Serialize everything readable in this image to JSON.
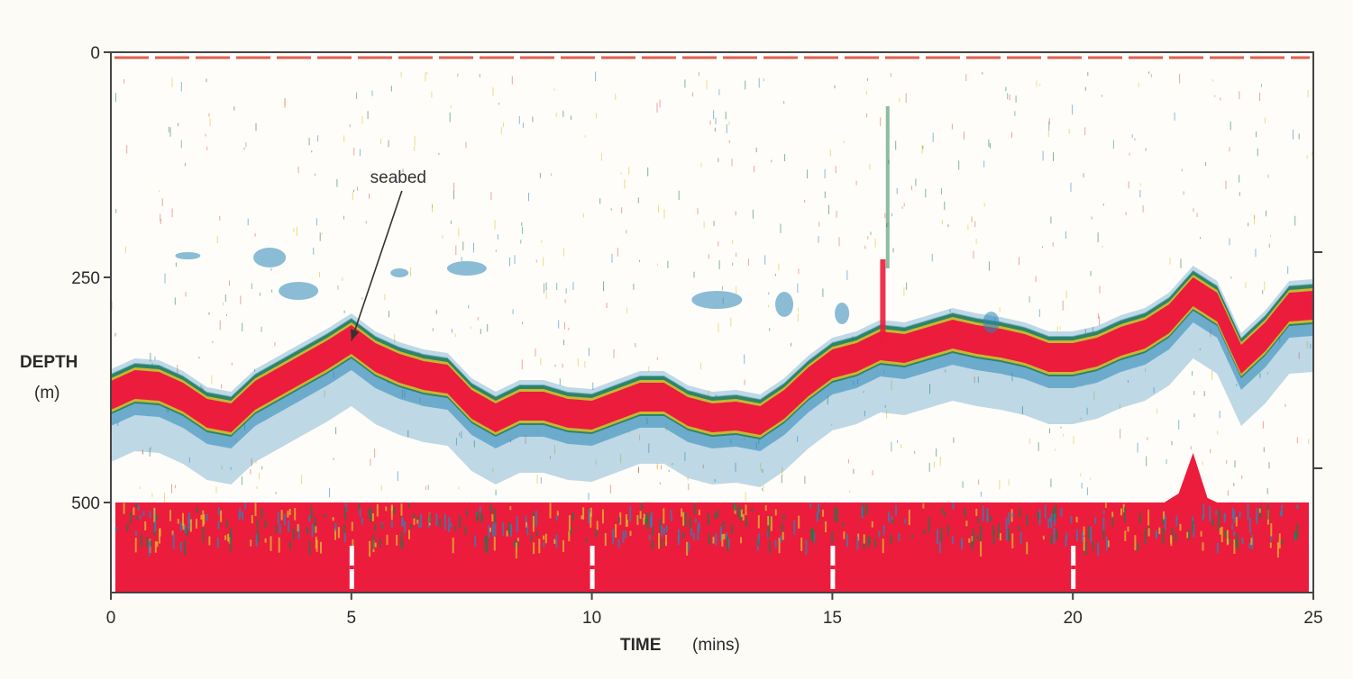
{
  "chart_data": {
    "type": "area",
    "title": "",
    "xlabel": "TIME",
    "xlabel_unit": "(mins)",
    "ylabel": "DEPTH",
    "ylabel_unit": "(m)",
    "xlim": [
      0,
      25
    ],
    "ylim": [
      0,
      600
    ],
    "y_inverted": true,
    "x_ticks": [
      "0",
      "5",
      "10",
      "15",
      "20",
      "25"
    ],
    "y_ticks": [
      "0",
      "250",
      "500"
    ],
    "grid": false,
    "colors": {
      "seabed_echo": "#ec1c3c",
      "weak_echo": "#2a86b8",
      "mid_echo": "#1e7a4a",
      "fringe_echo": "#e0c02a",
      "surface_line": "#e06050",
      "frame": "#444444"
    },
    "annotations": [
      {
        "text": "seabed",
        "x": 5.9,
        "y": 320
      }
    ],
    "series": [
      {
        "name": "seabed",
        "x": [
          0,
          0.5,
          1,
          1.5,
          2,
          2.5,
          3,
          3.5,
          4,
          4.5,
          5,
          5.5,
          6,
          6.5,
          7,
          7.5,
          8,
          8.5,
          9,
          9.5,
          10,
          10.5,
          11,
          11.5,
          12,
          12.5,
          13,
          13.5,
          14,
          14.5,
          15,
          15.5,
          16,
          16.5,
          17,
          17.5,
          18,
          18.5,
          19,
          19.5,
          20,
          20.5,
          21,
          21.5,
          22,
          22.5,
          23,
          23.5,
          24,
          24.5,
          25
        ],
        "y": [
          360,
          348,
          350,
          362,
          380,
          385,
          360,
          345,
          330,
          315,
          298,
          318,
          330,
          338,
          342,
          370,
          385,
          372,
          372,
          380,
          382,
          372,
          362,
          362,
          378,
          385,
          383,
          388,
          370,
          345,
          325,
          318,
          305,
          308,
          300,
          292,
          298,
          302,
          308,
          318,
          318,
          312,
          300,
          292,
          275,
          245,
          262,
          320,
          295,
          262,
          260
        ]
      }
    ],
    "lower_band": {
      "top": 500,
      "bottom": 600
    }
  }
}
